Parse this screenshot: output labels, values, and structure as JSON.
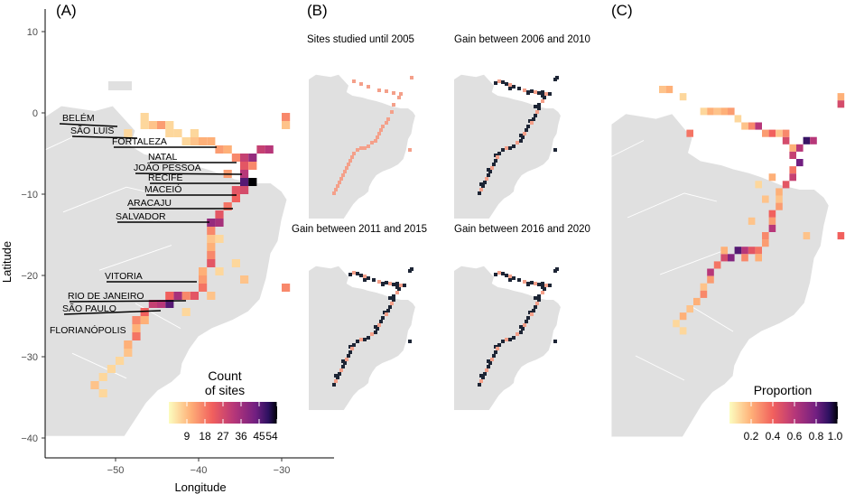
{
  "panels": {
    "a": {
      "label": "(A)"
    },
    "b": {
      "label": "(B)"
    },
    "c": {
      "label": "(C)"
    }
  },
  "axes": {
    "x_title": "Longitude",
    "y_title": "Latitude",
    "x_ticks": [
      "−50",
      "−40",
      "−30"
    ],
    "y_ticks": [
      "10",
      "0",
      "−10",
      "−20",
      "−30",
      "−40"
    ]
  },
  "cities": [
    {
      "name": "BELÉM"
    },
    {
      "name": "SÃO LUÍS"
    },
    {
      "name": "FORTALEZA"
    },
    {
      "name": "NATAL"
    },
    {
      "name": "JOÃO PESSOA"
    },
    {
      "name": "RECIFE"
    },
    {
      "name": "MACEIÓ"
    },
    {
      "name": "ARACAJU"
    },
    {
      "name": "SALVADOR"
    },
    {
      "name": "VITORIA"
    },
    {
      "name": "RIO DE JANEIRO"
    },
    {
      "name": "SÃO PAULO"
    },
    {
      "name": "FLORIANÓPOLIS"
    }
  ],
  "subpanels": {
    "b1": {
      "title": "Sites studied until 2005"
    },
    "b2": {
      "title": "Gain between 2006 and 2010"
    },
    "b3": {
      "title": "Gain between 2011 and 2015"
    },
    "b4": {
      "title": "Gain between 2016 and 2020"
    }
  },
  "legend_a": {
    "title_line1": "Count",
    "title_line2": "of sites",
    "ticks": [
      "9",
      "18",
      "27",
      "36",
      "45",
      "54"
    ],
    "range": [
      0,
      54
    ]
  },
  "legend_c": {
    "title": "Proportion",
    "ticks": [
      "0.2",
      "0.4",
      "0.6",
      "0.8",
      "1.0"
    ],
    "range": [
      0,
      1
    ]
  },
  "colors": {
    "land": "#e0e0e0",
    "new_sites": "#1d2535",
    "existing_sites": "#f4a08a",
    "palette": [
      "#fcfdbf",
      "#feb078",
      "#f1605d",
      "#b73779",
      "#721f81",
      "#2c115f",
      "#000004"
    ]
  }
}
